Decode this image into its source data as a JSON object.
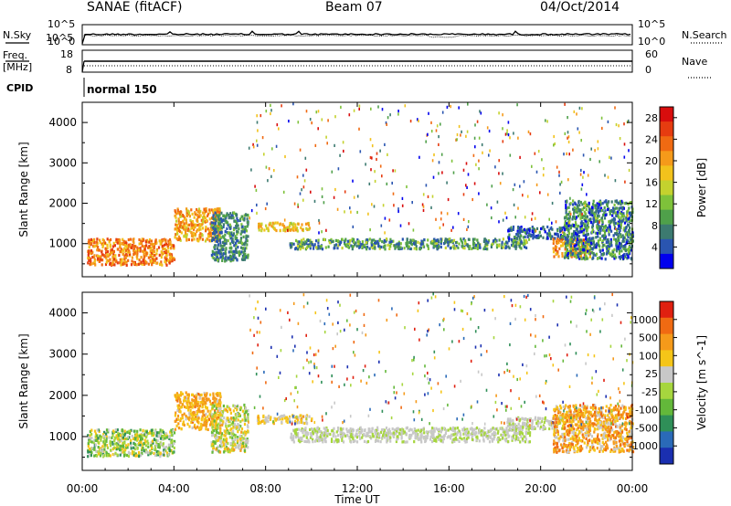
{
  "header": {
    "station": "SANAE (fitACF)",
    "beam": "Beam 07",
    "date": "04/Oct/2014"
  },
  "meta_labels": {
    "nsky": "N.Sky",
    "nsearch": "N.Search",
    "freq": "Freq.",
    "mhz": "[MHz]",
    "nave": "Nave",
    "cpid": "CPID",
    "cpid_value": "normal 150",
    "noise_ticks": [
      "10^5",
      "10^0"
    ],
    "freq_ticks_left": [
      "18",
      "8"
    ],
    "nave_ticks_right": [
      "60",
      "0"
    ]
  },
  "chart_data": [
    {
      "type": "heatmap",
      "title": "Power",
      "ylabel": "Slant Range [km]",
      "xlabel": "",
      "x_ticks": [
        "00:00",
        "04:00",
        "08:00",
        "12:00",
        "16:00",
        "20:00",
        "00:00"
      ],
      "x_range_hours": [
        0,
        24
      ],
      "y_ticks": [
        1000,
        2000,
        3000,
        4000
      ],
      "ylim": [
        180,
        4500
      ],
      "colorbar": {
        "label": "Power [dB]",
        "ticks": [
          "4",
          "8",
          "12",
          "16",
          "20",
          "24",
          "28"
        ],
        "colors": [
          "#0000ee",
          "#2a55b0",
          "#3c7a70",
          "#4fa04a",
          "#7ec23a",
          "#c4d22e",
          "#f2c21c",
          "#f59a1a",
          "#f06a12",
          "#e63c10",
          "#d80d0d"
        ]
      },
      "regions": [
        {
          "h": [
            0.2,
            4.0
          ],
          "km": [
            500,
            1150
          ],
          "v": [
            0.55,
            0.95
          ]
        },
        {
          "h": [
            4.0,
            6.0
          ],
          "km": [
            1100,
            1900
          ],
          "v": [
            0.5,
            0.85
          ]
        },
        {
          "h": [
            5.6,
            7.2
          ],
          "km": [
            600,
            1800
          ],
          "v": [
            0.05,
            0.4
          ]
        },
        {
          "h": [
            7.6,
            10.0
          ],
          "km": [
            1350,
            1550
          ],
          "v": [
            0.45,
            0.75
          ]
        },
        {
          "h": [
            9.0,
            19.5
          ],
          "km": [
            900,
            1150
          ],
          "v": [
            0.05,
            0.5
          ]
        },
        {
          "h": [
            18.5,
            21.0
          ],
          "km": [
            1150,
            1450
          ],
          "v": [
            0.0,
            0.3
          ]
        },
        {
          "h": [
            20.5,
            22.2
          ],
          "km": [
            700,
            1150
          ],
          "v": [
            0.55,
            0.9
          ]
        },
        {
          "h": [
            21.0,
            24.0
          ],
          "km": [
            650,
            2100
          ],
          "v": [
            0.0,
            0.45
          ]
        }
      ]
    },
    {
      "type": "heatmap",
      "title": "Velocity",
      "ylabel": "Slant Range [km]",
      "xlabel": "Time UT",
      "x_ticks": [
        "00:00",
        "04:00",
        "08:00",
        "12:00",
        "16:00",
        "20:00",
        "00:00"
      ],
      "x_range_hours": [
        0,
        24
      ],
      "y_ticks": [
        1000,
        2000,
        3000,
        4000
      ],
      "ylim": [
        180,
        4500
      ],
      "colorbar": {
        "label": "Velocity [m s^-1]",
        "ticks": [
          "1000",
          "500",
          "100",
          "25",
          "-25",
          "-100",
          "-500",
          "-1000"
        ],
        "colors": [
          "#1a2fb0",
          "#2a6ab8",
          "#2f8f58",
          "#63b83a",
          "#a6d63e",
          "#c8c8c8",
          "#f5c518",
          "#f59a1a",
          "#f06a12",
          "#e02010"
        ]
      },
      "regions": [
        {
          "h": [
            0.2,
            4.0
          ],
          "km": [
            550,
            1200
          ],
          "v": [
            0.2,
            0.7
          ]
        },
        {
          "h": [
            4.0,
            6.0
          ],
          "km": [
            1200,
            2100
          ],
          "v": [
            0.6,
            0.85
          ]
        },
        {
          "h": [
            5.6,
            7.2
          ],
          "km": [
            650,
            1800
          ],
          "v": [
            0.3,
            0.75
          ]
        },
        {
          "h": [
            7.6,
            10.0
          ],
          "km": [
            1350,
            1550
          ],
          "v": [
            0.5,
            0.75
          ]
        },
        {
          "h": [
            9.0,
            19.5
          ],
          "km": [
            900,
            1250
          ],
          "v": [
            0.45,
            0.6
          ]
        },
        {
          "h": [
            18.5,
            21.0
          ],
          "km": [
            1200,
            1500
          ],
          "v": [
            0.45,
            0.6
          ]
        },
        {
          "h": [
            20.5,
            24.0
          ],
          "km": [
            650,
            1800
          ],
          "v": [
            0.55,
            0.9
          ]
        }
      ]
    }
  ]
}
